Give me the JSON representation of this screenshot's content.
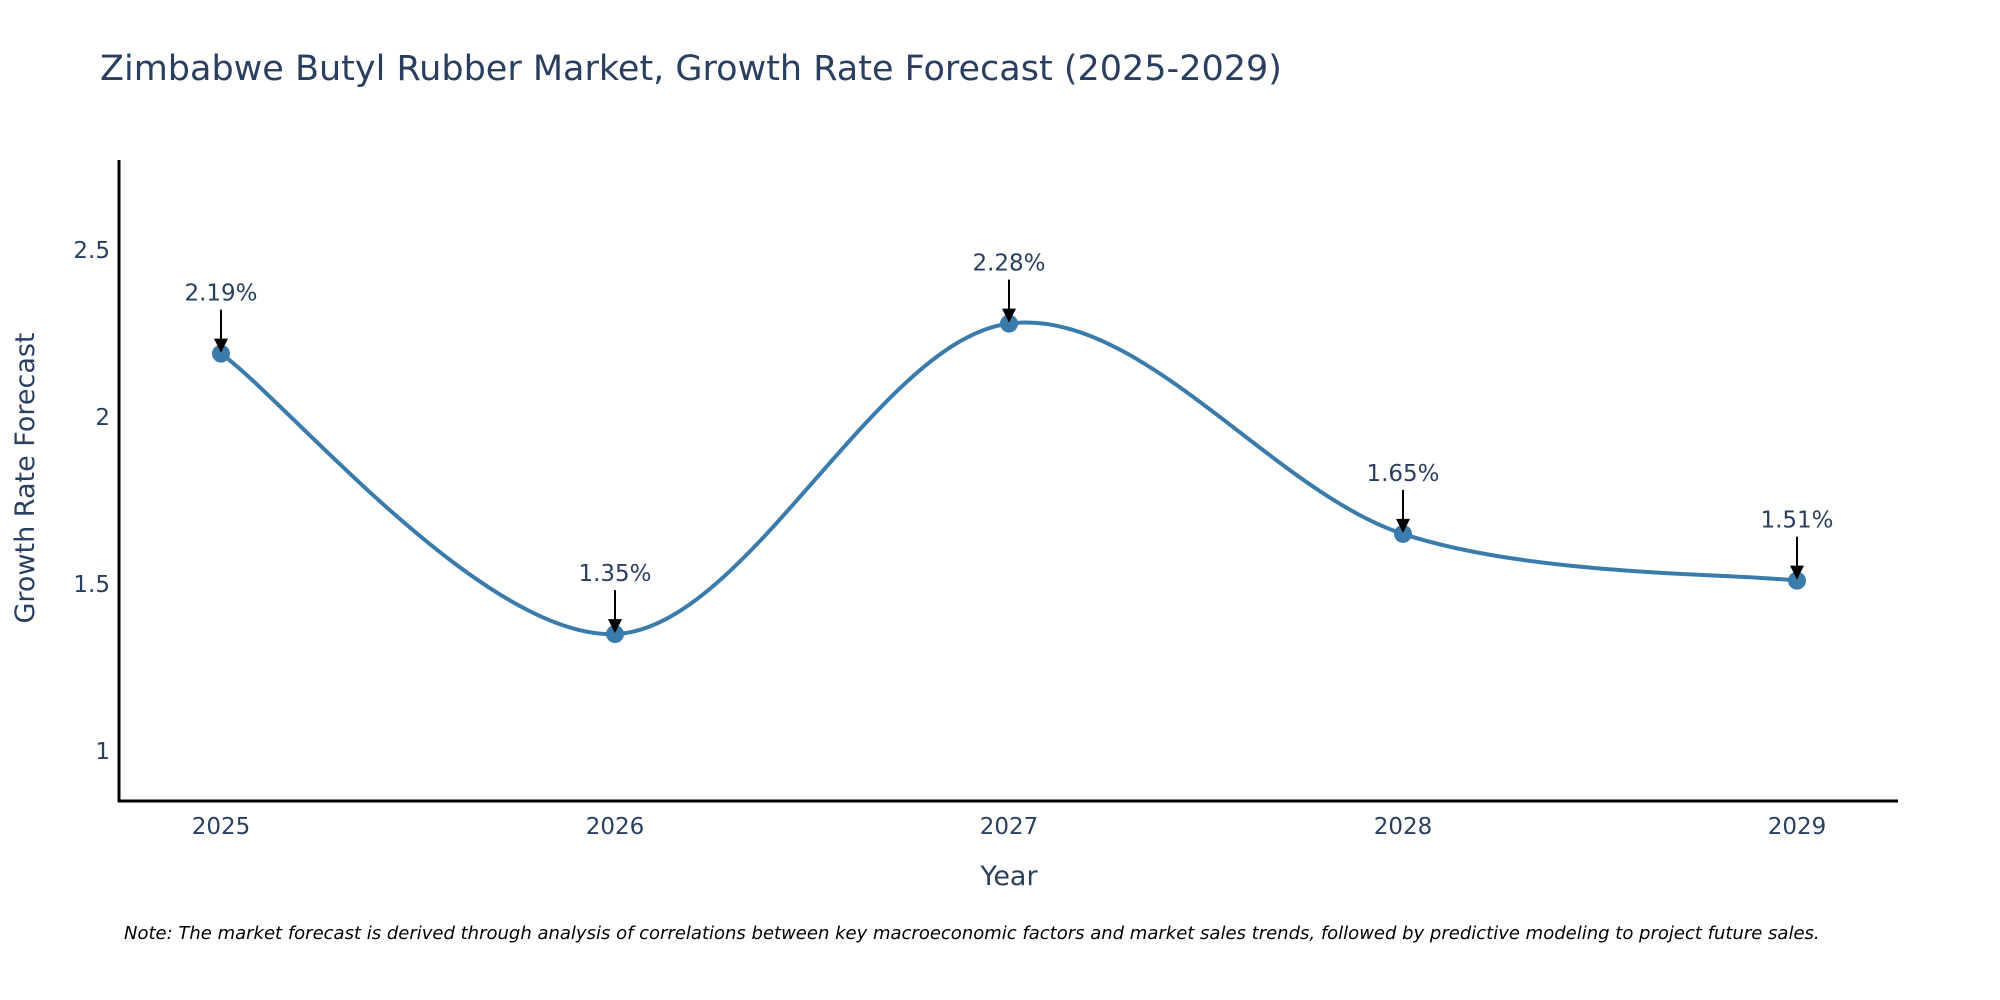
{
  "chart_data": {
    "type": "line",
    "title": "Zimbabwe Butyl Rubber Market, Growth Rate Forecast (2025-2029)",
    "xlabel": "Year",
    "ylabel": "Growth Rate Forecast",
    "categories": [
      "2025",
      "2026",
      "2027",
      "2028",
      "2029"
    ],
    "values": [
      2.19,
      1.35,
      2.28,
      1.65,
      1.51
    ],
    "data_labels": [
      "2.19%",
      "1.35%",
      "2.28%",
      "1.65%",
      "1.51%"
    ],
    "ylim": [
      0.85,
      2.77
    ],
    "yticks": [
      1,
      1.5,
      2,
      2.5
    ],
    "ytick_labels": [
      "1",
      "1.5",
      "2",
      "2.5"
    ],
    "grid": false,
    "line_shape": "spline",
    "note": "Note: The market forecast is derived through analysis of correlations between key macroeconomic factors and market sales trends, followed by predictive modeling to project future sales."
  },
  "colors": {
    "line": "#3a7bab",
    "marker": "#3a7bab",
    "axis": "#000000",
    "text": "#2a3f5f",
    "arrow": "#000000"
  }
}
